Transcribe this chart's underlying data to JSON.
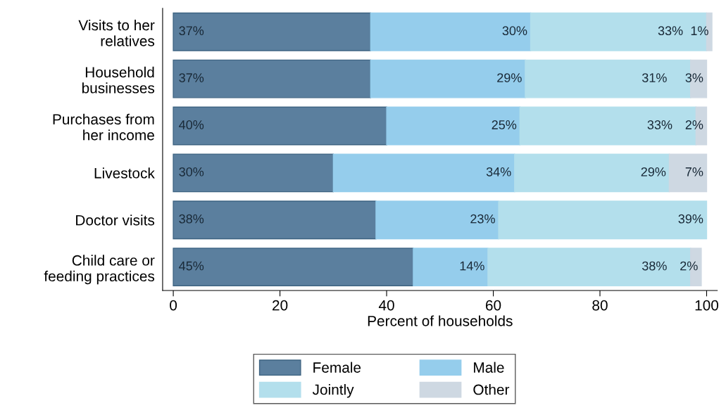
{
  "chart_data": {
    "type": "bar",
    "orientation": "horizontal",
    "stacked": true,
    "categories": [
      "Visits to her\nrelatives",
      "Household\nbusinesses",
      "Purchases from\nher income",
      "Livestock",
      "Doctor visits",
      "Child care or\nfeeding practices"
    ],
    "series": [
      {
        "name": "Female",
        "color": "#5b7f9e",
        "values": [
          37,
          37,
          40,
          30,
          38,
          45
        ],
        "value_labels": [
          "37%",
          "37%",
          "40%",
          "30%",
          "38%",
          "45%"
        ]
      },
      {
        "name": "Male",
        "color": "#95cdec",
        "values": [
          30,
          29,
          25,
          34,
          23,
          14
        ],
        "value_labels": [
          "30%",
          "29%",
          "25%",
          "34%",
          "23%",
          "14%"
        ]
      },
      {
        "name": "Jointly",
        "color": "#b3dfec",
        "values": [
          33,
          31,
          33,
          29,
          39,
          38
        ],
        "value_labels": [
          "33%",
          "31%",
          "33%",
          "29%",
          "39%",
          "38%"
        ]
      },
      {
        "name": "Other",
        "color": "#ced8e2",
        "values": [
          1,
          3,
          2,
          7,
          null,
          2
        ],
        "value_labels": [
          "1%",
          "3%",
          "2%",
          "7%",
          null,
          "2%"
        ]
      }
    ],
    "xlabel": "Percent of households",
    "xlim": [
      -2,
      102
    ],
    "xticks": [
      0,
      20,
      40,
      60,
      80,
      100
    ],
    "grid": false,
    "legend": "bottom"
  }
}
